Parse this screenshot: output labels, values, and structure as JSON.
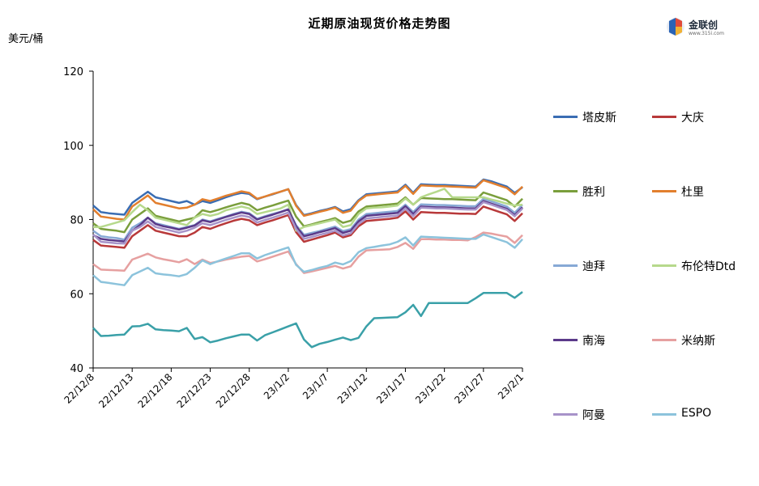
{
  "chart_data": {
    "type": "line",
    "title": "近期原油现货价格走势图",
    "ylabel": "美元/桶",
    "ylim": [
      40,
      120
    ],
    "yticks": [
      "40",
      "60",
      "80",
      "100",
      "120"
    ],
    "x_tick_labels": [
      "22/12/8",
      "22/12/13",
      "22/12/18",
      "22/12/23",
      "22/12/28",
      "23/1/2",
      "23/1/7",
      "23/1/12",
      "23/1/17",
      "23/1/22",
      "23/1/27",
      "23/2/1"
    ],
    "x_tick_index": [
      0,
      5,
      10,
      15,
      20,
      25,
      30,
      35,
      40,
      45,
      50,
      55
    ],
    "x_count": 56,
    "legend_position": "right",
    "series": [
      {
        "name": "塔皮斯",
        "color": "#3a6db3",
        "values": [
          83.8,
          82.0,
          81.7,
          81.5,
          81.3,
          84.5,
          86.0,
          87.5,
          86.0,
          85.5,
          85.0,
          84.5,
          85.0,
          84.0,
          85.0,
          84.5,
          85.2,
          86.0,
          86.7,
          87.2,
          86.9,
          85.5,
          86.2,
          86.8,
          87.5,
          88.2,
          83.9,
          81.2,
          81.7,
          82.3,
          82.8,
          83.4,
          82.2,
          82.8,
          85.2,
          86.8,
          87.0,
          87.2,
          87.4,
          87.6,
          89.4,
          87.2,
          89.5,
          89.4,
          89.3,
          89.3,
          89.2,
          89.1,
          89.0,
          88.9,
          90.8,
          90.3,
          89.6,
          88.9,
          87.2,
          88.7
        ]
      },
      {
        "name": "大庆",
        "color": "#b8393a",
        "values": [
          74.5,
          73.0,
          72.8,
          72.6,
          72.4,
          75.5,
          77.0,
          78.5,
          77.0,
          76.5,
          76.0,
          75.5,
          75.5,
          76.5,
          78.0,
          77.5,
          78.3,
          79.0,
          79.7,
          80.2,
          79.8,
          78.5,
          79.2,
          79.8,
          80.5,
          81.2,
          76.6,
          74.0,
          74.6,
          75.2,
          75.8,
          76.5,
          75.2,
          75.8,
          78.2,
          79.6,
          79.8,
          80.0,
          80.2,
          80.5,
          82.2,
          80.0,
          82.0,
          81.9,
          81.8,
          81.8,
          81.7,
          81.6,
          81.6,
          81.5,
          83.5,
          82.8,
          82.1,
          81.4,
          79.6,
          81.7
        ]
      },
      {
        "name": "胜利",
        "color": "#7a9e3c",
        "values": [
          79.0,
          77.5,
          77.2,
          77.0,
          76.6,
          80.0,
          81.5,
          83.0,
          81.0,
          80.5,
          80.0,
          79.5,
          80.0,
          80.5,
          82.5,
          82.0,
          82.6,
          83.3,
          83.9,
          84.5,
          84.0,
          82.5,
          83.2,
          83.8,
          84.5,
          85.1,
          80.8,
          78.2,
          78.7,
          79.3,
          79.8,
          80.4,
          79.1,
          79.7,
          82.2,
          83.5,
          83.7,
          83.9,
          84.1,
          84.3,
          86.0,
          84.0,
          85.8,
          85.7,
          85.6,
          85.5,
          85.5,
          85.4,
          85.3,
          85.2,
          87.3,
          86.6,
          85.9,
          85.2,
          83.5,
          85.6
        ]
      },
      {
        "name": "杜里",
        "color": "#e27f2e",
        "values": [
          82.8,
          80.8,
          80.5,
          80.2,
          80.0,
          83.5,
          85.0,
          86.5,
          84.5,
          84.0,
          83.5,
          83.0,
          83.2,
          84.0,
          85.5,
          85.0,
          85.7,
          86.4,
          87.0,
          87.6,
          87.2,
          85.6,
          86.2,
          86.9,
          87.5,
          88.2,
          83.7,
          81.0,
          81.5,
          82.1,
          82.6,
          83.2,
          81.8,
          82.4,
          85.0,
          86.5,
          86.7,
          86.9,
          87.1,
          87.3,
          89.1,
          86.9,
          89.2,
          89.1,
          89.0,
          89.0,
          88.9,
          88.8,
          88.7,
          88.6,
          90.6,
          89.9,
          89.2,
          88.5,
          86.8,
          88.9
        ]
      },
      {
        "name": "迪拜",
        "color": "#87a9d5",
        "values": [
          77.0,
          75.5,
          75.2,
          75.0,
          74.6,
          77.8,
          79.0,
          80.5,
          79.0,
          78.5,
          78.0,
          77.5,
          78.0,
          78.5,
          80.0,
          79.5,
          80.2,
          80.8,
          81.5,
          82.1,
          81.7,
          80.2,
          80.9,
          81.5,
          82.1,
          82.8,
          78.5,
          75.9,
          76.4,
          76.9,
          77.5,
          78.1,
          76.9,
          77.4,
          80.0,
          81.5,
          81.7,
          81.9,
          82.1,
          82.3,
          84.0,
          82.0,
          84.1,
          84.0,
          83.9,
          83.9,
          83.8,
          83.7,
          83.6,
          83.6,
          85.6,
          84.9,
          84.2,
          83.5,
          81.8,
          84.0
        ]
      },
      {
        "name": "布伦特Dtd",
        "color": "#b6d98c",
        "values": [
          78.0,
          78.0,
          78.6,
          79.2,
          79.8,
          82.0,
          84.0,
          82.5,
          80.5,
          80.0,
          79.5,
          79.0,
          78.5,
          80.5,
          81.5,
          81.0,
          81.5,
          82.5,
          83.0,
          83.5,
          83.0,
          81.5,
          82.0,
          82.5,
          83.0,
          84.0,
          77.0,
          78.0,
          78.5,
          79.0,
          79.5,
          80.0,
          78.0,
          78.5,
          81.5,
          83.0,
          83.2,
          83.3,
          83.5,
          83.8,
          85.7,
          84.0,
          86.0,
          86.8,
          87.5,
          88.3,
          86.0,
          86.0,
          86.0,
          86.0,
          86.0,
          85.4,
          84.9,
          84.3,
          83.8,
          84.0
        ]
      },
      {
        "name": "南海",
        "color": "#5b3a8a",
        "values": [
          75.8,
          74.8,
          74.5,
          74.3,
          74.1,
          77.0,
          78.5,
          80.5,
          78.8,
          78.2,
          77.8,
          77.3,
          77.8,
          78.4,
          79.8,
          79.3,
          80.0,
          80.7,
          81.3,
          81.9,
          81.5,
          80.0,
          80.7,
          81.3,
          82.0,
          82.7,
          78.2,
          75.5,
          76.0,
          76.6,
          77.1,
          77.7,
          76.4,
          77.0,
          79.5,
          81.0,
          81.2,
          81.4,
          81.6,
          81.8,
          83.6,
          81.5,
          83.5,
          83.4,
          83.3,
          83.3,
          83.2,
          83.1,
          83.0,
          83.0,
          85.0,
          84.3,
          83.6,
          82.9,
          81.2,
          83.3
        ]
      },
      {
        "name": "米纳斯",
        "color": "#e6a0a0",
        "values": [
          68.0,
          66.5,
          66.4,
          66.3,
          66.2,
          69.2,
          70.0,
          70.8,
          69.8,
          69.3,
          68.9,
          68.5,
          69.3,
          68.0,
          69.2,
          68.3,
          68.7,
          69.2,
          69.6,
          70.0,
          70.2,
          68.7,
          69.3,
          70.0,
          70.7,
          71.4,
          68.0,
          65.6,
          66.0,
          66.5,
          67.0,
          67.5,
          66.8,
          67.4,
          70.0,
          71.7,
          71.8,
          71.9,
          72.0,
          72.6,
          73.7,
          72.1,
          74.7,
          74.7,
          74.6,
          74.6,
          74.5,
          74.5,
          74.4,
          75.3,
          76.5,
          76.2,
          75.8,
          75.4,
          73.7,
          75.8
        ]
      },
      {
        "name": "阿曼",
        "color": "#a793c9",
        "values": [
          76.0,
          74.0,
          73.8,
          73.6,
          73.5,
          77.0,
          78.0,
          79.5,
          78.0,
          77.5,
          77.0,
          76.5,
          77.0,
          77.8,
          79.0,
          78.5,
          79.2,
          79.9,
          80.5,
          81.1,
          80.7,
          79.2,
          79.9,
          80.5,
          81.2,
          81.9,
          77.5,
          74.8,
          75.3,
          75.9,
          76.4,
          77.0,
          75.7,
          76.3,
          78.8,
          80.3,
          80.5,
          80.7,
          80.9,
          81.1,
          83.0,
          80.9,
          83.2,
          83.1,
          83.0,
          83.0,
          82.9,
          82.8,
          82.7,
          82.7,
          84.7,
          84.0,
          83.3,
          82.6,
          80.9,
          83.0
        ]
      },
      {
        "name": "ESPO",
        "color": "#8cc3dc",
        "values": [
          65.0,
          63.2,
          62.9,
          62.6,
          62.3,
          65.0,
          66.0,
          67.0,
          65.5,
          65.2,
          65.0,
          64.7,
          65.3,
          67.0,
          69.0,
          68.0,
          68.8,
          69.5,
          70.2,
          70.9,
          70.9,
          69.5,
          70.4,
          71.1,
          71.8,
          72.5,
          67.8,
          65.9,
          66.4,
          67.0,
          67.5,
          68.4,
          67.9,
          68.8,
          71.2,
          72.3,
          72.6,
          73.0,
          73.3,
          74.0,
          75.2,
          73.0,
          75.4,
          75.3,
          75.2,
          75.1,
          75.0,
          74.9,
          74.8,
          74.8,
          76.0,
          75.3,
          74.6,
          73.9,
          72.4,
          74.7
        ]
      },
      {
        "name": "",
        "color": "#3aa0a8",
        "values": [
          50.8,
          48.6,
          48.7,
          48.9,
          49.0,
          51.2,
          51.3,
          51.9,
          50.4,
          50.2,
          50.1,
          49.9,
          50.8,
          47.8,
          48.3,
          46.9,
          47.4,
          48.0,
          48.5,
          49.0,
          49.0,
          47.4,
          48.8,
          49.6,
          50.4,
          51.2,
          52.0,
          47.7,
          45.6,
          46.5,
          47.0,
          47.6,
          48.2,
          47.5,
          48.1,
          51.2,
          53.4,
          53.5,
          53.6,
          53.7,
          55.0,
          57.0,
          54.0,
          57.5,
          57.5,
          57.5,
          57.5,
          57.5,
          57.5,
          58.8,
          60.2,
          60.2,
          60.2,
          60.2,
          58.9,
          60.5
        ]
      }
    ]
  },
  "logo": {
    "name": "金联创",
    "sub": "www.315i.com"
  }
}
